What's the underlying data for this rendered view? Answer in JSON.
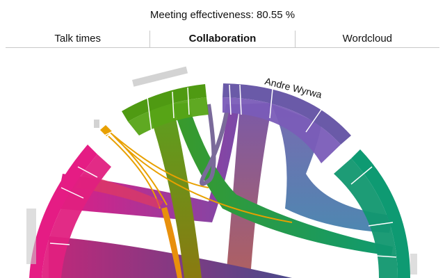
{
  "header": {
    "title": "Meeting effectiveness: 80.55 %"
  },
  "tabs": [
    {
      "label": "Talk times",
      "active": false
    },
    {
      "label": "Collaboration",
      "active": true
    },
    {
      "label": "Wordcloud",
      "active": false
    }
  ],
  "chord": {
    "participants": [
      {
        "name": "Andre Wyrwa",
        "color": "#6a5aa8"
      },
      {
        "name": "",
        "color": "#0e9a72"
      },
      {
        "name": "",
        "color": "#e51c84"
      },
      {
        "name": "",
        "color": "#e8a000"
      },
      {
        "name": "",
        "color": "#4f9a12"
      }
    ]
  }
}
